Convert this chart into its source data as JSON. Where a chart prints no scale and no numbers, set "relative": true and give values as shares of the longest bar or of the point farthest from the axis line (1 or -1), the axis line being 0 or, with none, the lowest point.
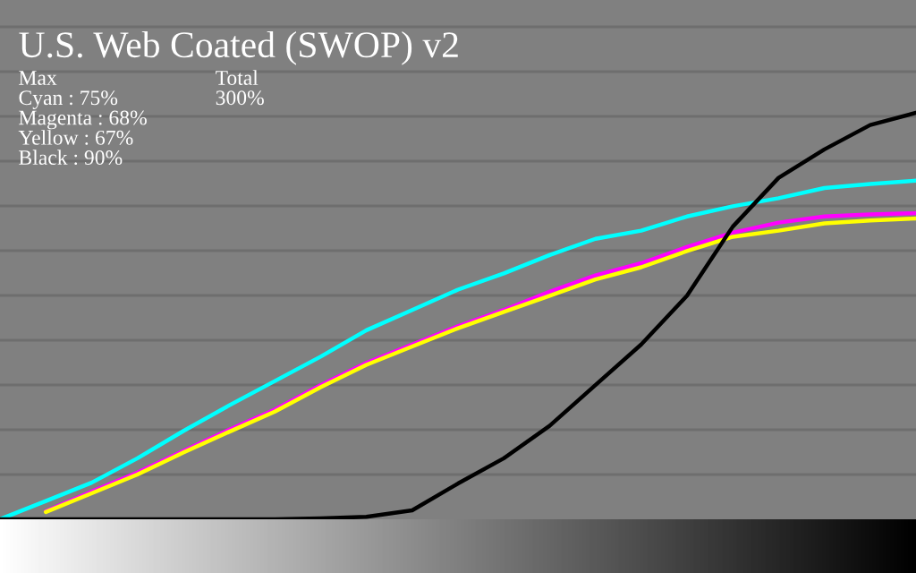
{
  "chart_data": {
    "type": "line",
    "title": "U.S. Web Coated (SWOP) v2",
    "annotations": [
      "Max\nCyan : 75%\nMagenta : 68%\nYellow : 67%\nBlack : 90%",
      "Total\n300%"
    ],
    "categories": [
      null,
      null,
      null,
      null,
      null,
      null,
      null,
      null,
      null,
      null,
      null,
      null,
      null,
      null,
      null,
      null,
      null,
      null,
      null,
      null,
      null
    ],
    "relative": true,
    "grid": "y",
    "series": [
      {
        "color": "#00ffff",
        "values": [
          0,
          0.045,
          0.09,
          0.15,
          0.217,
          0.28,
          0.34,
          0.4,
          0.465,
          0.515,
          0.565,
          0.605,
          0.65,
          0.69,
          0.71,
          0.745,
          0.77,
          0.79,
          0.815,
          0.825,
          0.833
        ]
      },
      {
        "color": "#ff00ff",
        "values": [
          null,
          0.02,
          0.068,
          0.115,
          0.168,
          0.22,
          0.27,
          0.33,
          0.385,
          0.43,
          0.475,
          0.515,
          0.56,
          0.6,
          0.63,
          0.67,
          0.705,
          0.73,
          0.745,
          0.75,
          0.753
        ]
      },
      {
        "color": "#ffff00",
        "values": [
          null,
          0.018,
          0.064,
          0.11,
          0.164,
          0.215,
          0.265,
          0.325,
          0.38,
          0.425,
          0.47,
          0.51,
          0.55,
          0.59,
          0.62,
          0.66,
          0.695,
          0.71,
          0.728,
          0.735,
          0.74
        ]
      },
      {
        "color": "#000000",
        "values": [
          0,
          0,
          0,
          0,
          0,
          0,
          0,
          0.002,
          0.006,
          0.022,
          0.088,
          0.15,
          0.23,
          0.33,
          0.43,
          0.55,
          0.72,
          0.84,
          0.91,
          0.97,
          1
        ]
      }
    ]
  }
}
